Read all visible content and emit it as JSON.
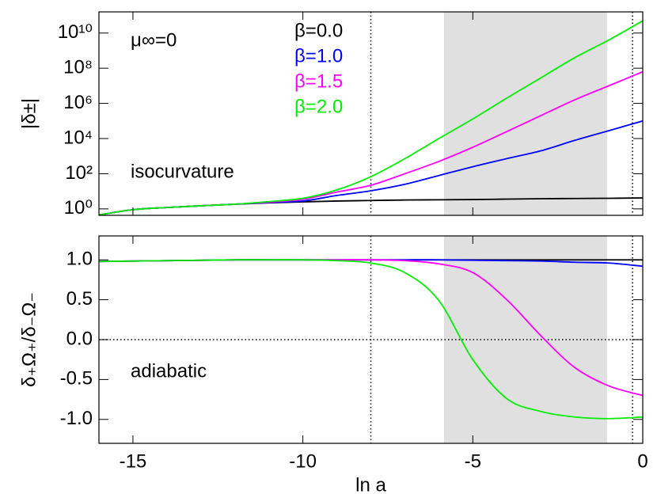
{
  "chart_data": [
    {
      "type": "line",
      "ylabel": "|δ±|",
      "log_y": true,
      "x": [
        -16,
        -15,
        -14,
        -13,
        -12,
        -11,
        -10,
        -9,
        -8,
        -7,
        -6,
        -5,
        -4,
        -3,
        -2,
        -1,
        0
      ],
      "xlim": [
        -16,
        0
      ],
      "xticks": [
        -15,
        -10,
        -5,
        0
      ],
      "xtick_labels_shown": false,
      "ylim": [
        0.43,
        160000000000.0
      ],
      "yticks": [
        {
          "value": 1,
          "label": "10⁰"
        },
        {
          "value": 100,
          "label": "10²"
        },
        {
          "value": 10000,
          "label": "10⁴"
        },
        {
          "value": 1000000,
          "label": "10⁶"
        },
        {
          "value": 100000000,
          "label": "10⁸"
        },
        {
          "value": 10000000000,
          "label": "10¹⁰"
        }
      ],
      "shaded_xrange": [
        -5.85,
        -1.05
      ],
      "shade_color": "#e0e0e0",
      "vlines": [
        -8,
        -0.3
      ],
      "annotations": [
        "μ∞=0",
        "isocurvature"
      ],
      "series": [
        {
          "name": "β=0.0",
          "color": "#000000",
          "values": [
            0.45,
            0.9,
            1.2,
            1.5,
            1.85,
            2.2,
            2.5,
            2.8,
            3.0,
            3.2,
            3.3,
            3.4,
            3.6,
            3.8,
            3.9,
            4.0,
            4.2
          ]
        },
        {
          "name": "β=1.0",
          "color": "#0000ff",
          "values": [
            0.45,
            0.9,
            1.2,
            1.5,
            1.85,
            2.3,
            2.8,
            5.8,
            10.7,
            25,
            79,
            250,
            720,
            2000,
            7900,
            28000,
            100000
          ]
        },
        {
          "name": "β=1.5",
          "color": "#ff00ff",
          "values": [
            0.45,
            0.9,
            1.2,
            1.5,
            1.85,
            2.4,
            3.5,
            9,
            22,
            100,
            500,
            3200,
            25000,
            200000,
            1600000,
            10000000,
            63000000
          ]
        },
        {
          "name": "β=2.0",
          "color": "#00ee00",
          "values": [
            0.45,
            0.9,
            1.2,
            1.5,
            1.85,
            2.6,
            4.0,
            12,
            68,
            720,
            10000,
            130000,
            2000000,
            28000000,
            400000000,
            4000000000,
            50000000000
          ]
        }
      ]
    },
    {
      "type": "line",
      "ylabel": "δ₊Ω₊/δ₋Ω₋",
      "xlabel": "ln a",
      "x": [
        -16,
        -15,
        -14,
        -13,
        -12,
        -11,
        -10,
        -9,
        -8,
        -7,
        -6,
        -5,
        -4,
        -3,
        -2,
        -1,
        0
      ],
      "xlim": [
        -16,
        0
      ],
      "xticks": [
        -15,
        -10,
        -5,
        0
      ],
      "xtick_labels_shown": true,
      "ylim": [
        -1.3,
        1.3
      ],
      "yticks": [
        {
          "value": -1,
          "label": "-1.0"
        },
        -0.5,
        {
          "value": 0,
          "label": "0.0"
        },
        0.5,
        {
          "value": 1,
          "label": "1.0"
        }
      ],
      "shaded_xrange": [
        -5.85,
        -1.05
      ],
      "shade_color": "#e0e0e0",
      "vlines": [
        -8,
        -0.3
      ],
      "hlines": [
        0
      ],
      "annotations": [
        "adiabatic"
      ],
      "series": [
        {
          "color": "#000000",
          "values": [
            0.98,
            0.985,
            0.99,
            0.995,
            1,
            1,
            1,
            1,
            1,
            1,
            1,
            1,
            1,
            1,
            1,
            1,
            1
          ]
        },
        {
          "color": "#0000ff",
          "values": [
            0.98,
            0.985,
            0.99,
            0.995,
            1,
            1,
            1,
            1,
            1,
            1,
            1,
            0.995,
            0.99,
            0.985,
            0.97,
            0.96,
            0.92
          ]
        },
        {
          "color": "#ff00ff",
          "values": [
            0.98,
            0.985,
            0.99,
            0.995,
            1,
            1,
            1,
            1,
            1,
            0.99,
            0.95,
            0.84,
            0.5,
            0.05,
            -0.35,
            -0.58,
            -0.7
          ]
        },
        {
          "color": "#00ee00",
          "values": [
            0.98,
            0.985,
            0.99,
            0.995,
            1,
            1,
            1,
            0.99,
            0.96,
            0.84,
            0.49,
            -0.25,
            -0.74,
            -0.9,
            -0.97,
            -0.99,
            -0.97
          ]
        }
      ]
    }
  ]
}
